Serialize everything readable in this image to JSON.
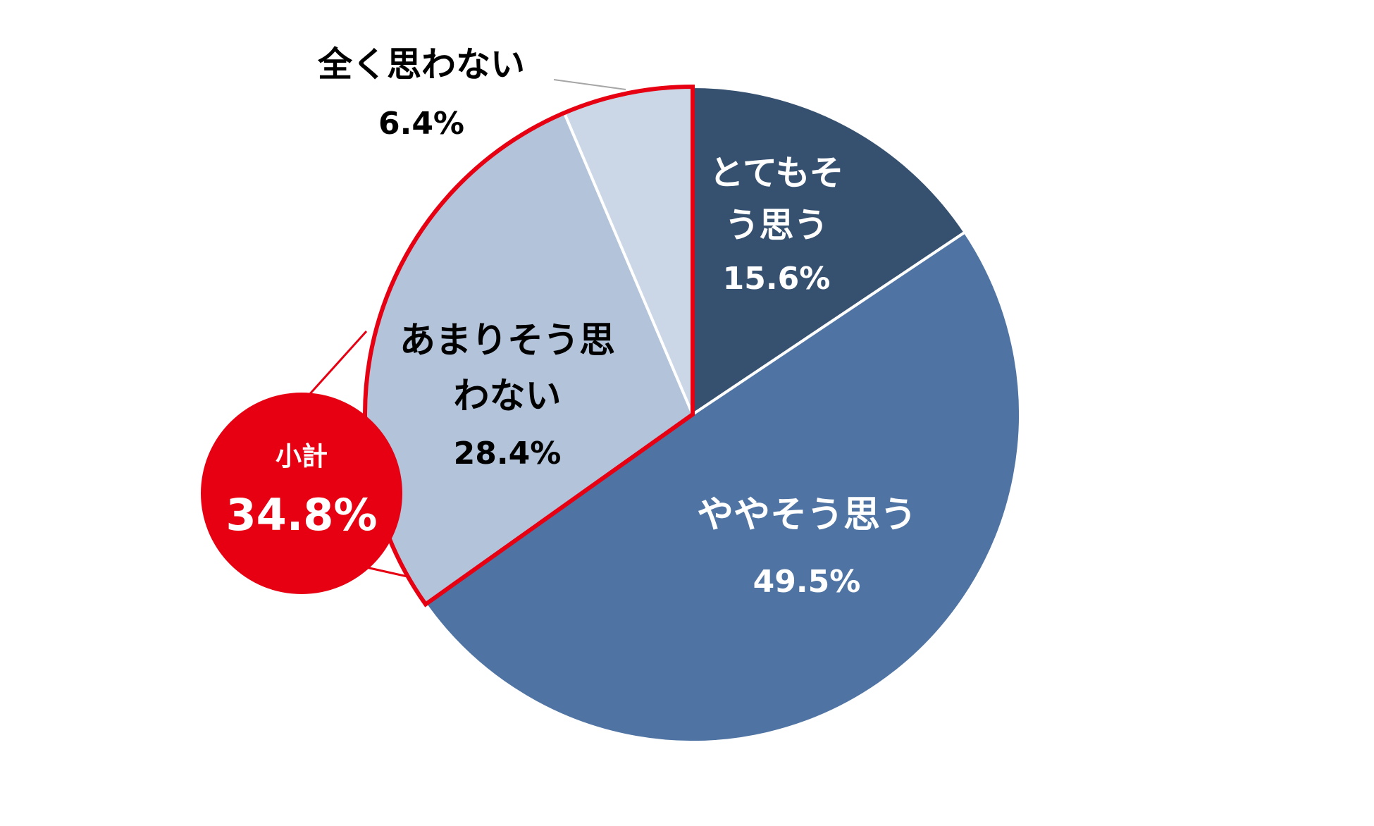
{
  "chart_data": {
    "type": "pie",
    "title": "",
    "start_angle_deg": 0,
    "direction": "clockwise",
    "slices": [
      {
        "label_lines": [
          "とてもそ",
          "う思う"
        ],
        "value": 15.6,
        "value_label": "15.6%",
        "color": "#36506f",
        "text_color": "#ffffff"
      },
      {
        "label_lines": [
          "ややそう思う"
        ],
        "value": 49.5,
        "value_label": "49.5%",
        "color": "#4f74a3",
        "text_color": "#ffffff"
      },
      {
        "label_lines": [
          "あまりそう思",
          "わない"
        ],
        "value": 28.4,
        "value_label": "28.4%",
        "color": "#b3c4da",
        "text_color": "#000000"
      },
      {
        "label_lines": [
          "全く思わない"
        ],
        "value": 6.4,
        "value_label": "6.4%",
        "color": "#cbd7e6",
        "text_color": "#000000"
      }
    ],
    "subtotal": {
      "label": "小計",
      "value_label": "34.8%",
      "includes": [
        "あまりそう思わない",
        "全く思わない"
      ],
      "color": "#e60012"
    }
  }
}
